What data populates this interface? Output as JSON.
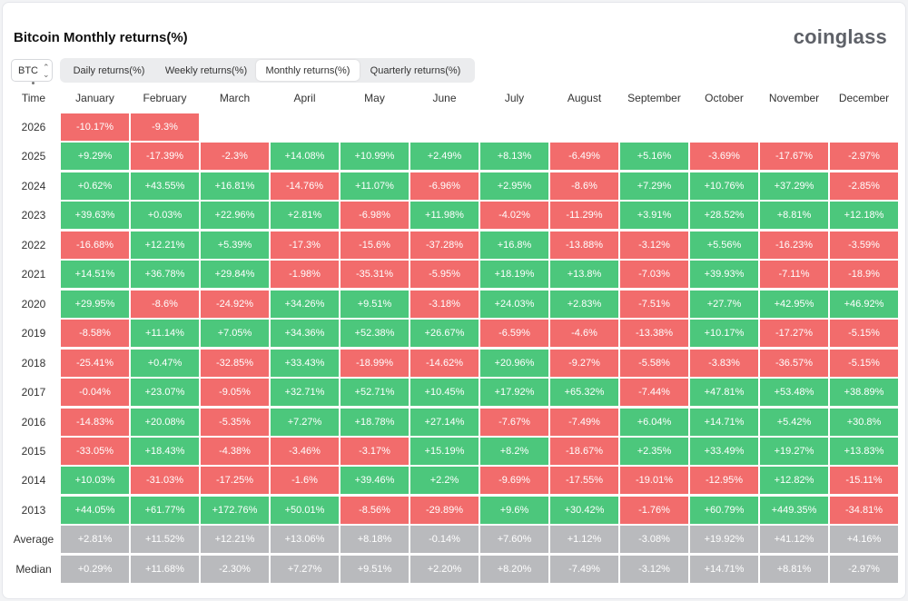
{
  "title": "Bitcoin Monthly returns(%)",
  "logo": "coinglass",
  "asset_select": {
    "value": "BTC"
  },
  "tabs": [
    {
      "label": "Daily returns(%)",
      "active": false
    },
    {
      "label": "Weekly returns(%)",
      "active": false
    },
    {
      "label": "Monthly returns(%)",
      "active": true
    },
    {
      "label": "Quarterly returns(%)",
      "active": false
    }
  ],
  "colors": {
    "positive": "#4cc77c",
    "negative": "#f26c6c",
    "summary": "#b9babd"
  },
  "table": {
    "time_header": "Time",
    "months": [
      "January",
      "February",
      "March",
      "April",
      "May",
      "June",
      "July",
      "August",
      "September",
      "October",
      "November",
      "December"
    ],
    "rows": [
      {
        "year": "2026",
        "values": [
          "-10.17%",
          "-9.3%"
        ]
      },
      {
        "year": "2025",
        "values": [
          "+9.29%",
          "-17.39%",
          "-2.3%",
          "+14.08%",
          "+10.99%",
          "+2.49%",
          "+8.13%",
          "-6.49%",
          "+5.16%",
          "-3.69%",
          "-17.67%",
          "-2.97%"
        ]
      },
      {
        "year": "2024",
        "values": [
          "+0.62%",
          "+43.55%",
          "+16.81%",
          "-14.76%",
          "+11.07%",
          "-6.96%",
          "+2.95%",
          "-8.6%",
          "+7.29%",
          "+10.76%",
          "+37.29%",
          "-2.85%"
        ]
      },
      {
        "year": "2023",
        "values": [
          "+39.63%",
          "+0.03%",
          "+22.96%",
          "+2.81%",
          "-6.98%",
          "+11.98%",
          "-4.02%",
          "-11.29%",
          "+3.91%",
          "+28.52%",
          "+8.81%",
          "+12.18%"
        ]
      },
      {
        "year": "2022",
        "values": [
          "-16.68%",
          "+12.21%",
          "+5.39%",
          "-17.3%",
          "-15.6%",
          "-37.28%",
          "+16.8%",
          "-13.88%",
          "-3.12%",
          "+5.56%",
          "-16.23%",
          "-3.59%"
        ]
      },
      {
        "year": "2021",
        "values": [
          "+14.51%",
          "+36.78%",
          "+29.84%",
          "-1.98%",
          "-35.31%",
          "-5.95%",
          "+18.19%",
          "+13.8%",
          "-7.03%",
          "+39.93%",
          "-7.11%",
          "-18.9%"
        ]
      },
      {
        "year": "2020",
        "values": [
          "+29.95%",
          "-8.6%",
          "-24.92%",
          "+34.26%",
          "+9.51%",
          "-3.18%",
          "+24.03%",
          "+2.83%",
          "-7.51%",
          "+27.7%",
          "+42.95%",
          "+46.92%"
        ]
      },
      {
        "year": "2019",
        "values": [
          "-8.58%",
          "+11.14%",
          "+7.05%",
          "+34.36%",
          "+52.38%",
          "+26.67%",
          "-6.59%",
          "-4.6%",
          "-13.38%",
          "+10.17%",
          "-17.27%",
          "-5.15%"
        ]
      },
      {
        "year": "2018",
        "values": [
          "-25.41%",
          "+0.47%",
          "-32.85%",
          "+33.43%",
          "-18.99%",
          "-14.62%",
          "+20.96%",
          "-9.27%",
          "-5.58%",
          "-3.83%",
          "-36.57%",
          "-5.15%"
        ]
      },
      {
        "year": "2017",
        "values": [
          "-0.04%",
          "+23.07%",
          "-9.05%",
          "+32.71%",
          "+52.71%",
          "+10.45%",
          "+17.92%",
          "+65.32%",
          "-7.44%",
          "+47.81%",
          "+53.48%",
          "+38.89%"
        ]
      },
      {
        "year": "2016",
        "values": [
          "-14.83%",
          "+20.08%",
          "-5.35%",
          "+7.27%",
          "+18.78%",
          "+27.14%",
          "-7.67%",
          "-7.49%",
          "+6.04%",
          "+14.71%",
          "+5.42%",
          "+30.8%"
        ]
      },
      {
        "year": "2015",
        "values": [
          "-33.05%",
          "+18.43%",
          "-4.38%",
          "-3.46%",
          "-3.17%",
          "+15.19%",
          "+8.2%",
          "-18.67%",
          "+2.35%",
          "+33.49%",
          "+19.27%",
          "+13.83%"
        ]
      },
      {
        "year": "2014",
        "values": [
          "+10.03%",
          "-31.03%",
          "-17.25%",
          "-1.6%",
          "+39.46%",
          "+2.2%",
          "-9.69%",
          "-17.55%",
          "-19.01%",
          "-12.95%",
          "+12.82%",
          "-15.11%"
        ]
      },
      {
        "year": "2013",
        "values": [
          "+44.05%",
          "+61.77%",
          "+172.76%",
          "+50.01%",
          "-8.56%",
          "-29.89%",
          "+9.6%",
          "+30.42%",
          "-1.76%",
          "+60.79%",
          "+449.35%",
          "-34.81%"
        ]
      }
    ],
    "summary": [
      {
        "label": "Average",
        "values": [
          "+2.81%",
          "+11.52%",
          "+12.21%",
          "+13.06%",
          "+8.18%",
          "-0.14%",
          "+7.60%",
          "+1.12%",
          "-3.08%",
          "+19.92%",
          "+41.12%",
          "+4.16%"
        ]
      },
      {
        "label": "Median",
        "values": [
          "+0.29%",
          "+11.68%",
          "-2.30%",
          "+7.27%",
          "+9.51%",
          "+2.20%",
          "+8.20%",
          "-7.49%",
          "-3.12%",
          "+14.71%",
          "+8.81%",
          "-2.97%"
        ]
      }
    ]
  }
}
